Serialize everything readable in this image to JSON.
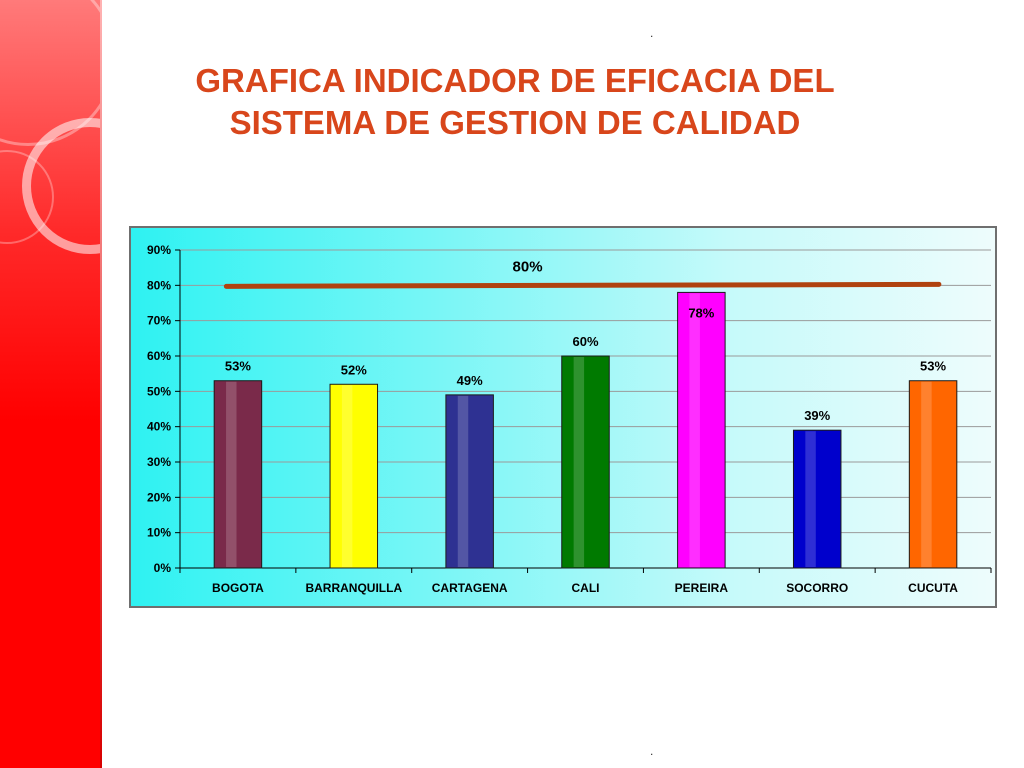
{
  "slide": {
    "title_line1": "GRAFICA INDICADOR DE EFICACIA DEL",
    "title_line2": "SISTEMA DE GESTION DE CALIDAD",
    "dot_top": ".",
    "dot_bottom": "."
  },
  "colors": {
    "title": "#d8461b",
    "sidebar": "#ff0000",
    "target_line": "#b0420f",
    "chart_bg_left": "#2ef2f2",
    "chart_bg_right": "#eefcfc"
  },
  "chart_data": {
    "type": "bar",
    "categories": [
      "BOGOTA",
      "BARRANQUILLA",
      "CARTAGENA",
      "CALI",
      "PEREIRA",
      "SOCORRO",
      "CUCUTA"
    ],
    "values": [
      53,
      52,
      49,
      60,
      78,
      39,
      53
    ],
    "value_labels": [
      "53%",
      "52%",
      "49%",
      "60%",
      "78%",
      "39%",
      "53%"
    ],
    "bar_colors": [
      "#7a2a4a",
      "#ffff00",
      "#2e3192",
      "#007a00",
      "#ff00ff",
      "#0000cc",
      "#ff6600"
    ],
    "yticks": [
      0,
      10,
      20,
      30,
      40,
      50,
      60,
      70,
      80,
      90
    ],
    "ytick_labels": [
      "0%",
      "10%",
      "20%",
      "30%",
      "40%",
      "50%",
      "60%",
      "70%",
      "80%",
      "90%"
    ],
    "ylim": [
      0,
      90
    ],
    "grid": true,
    "target": {
      "value": 80,
      "label": "80%"
    },
    "title": "",
    "xlabel": "",
    "ylabel": ""
  }
}
